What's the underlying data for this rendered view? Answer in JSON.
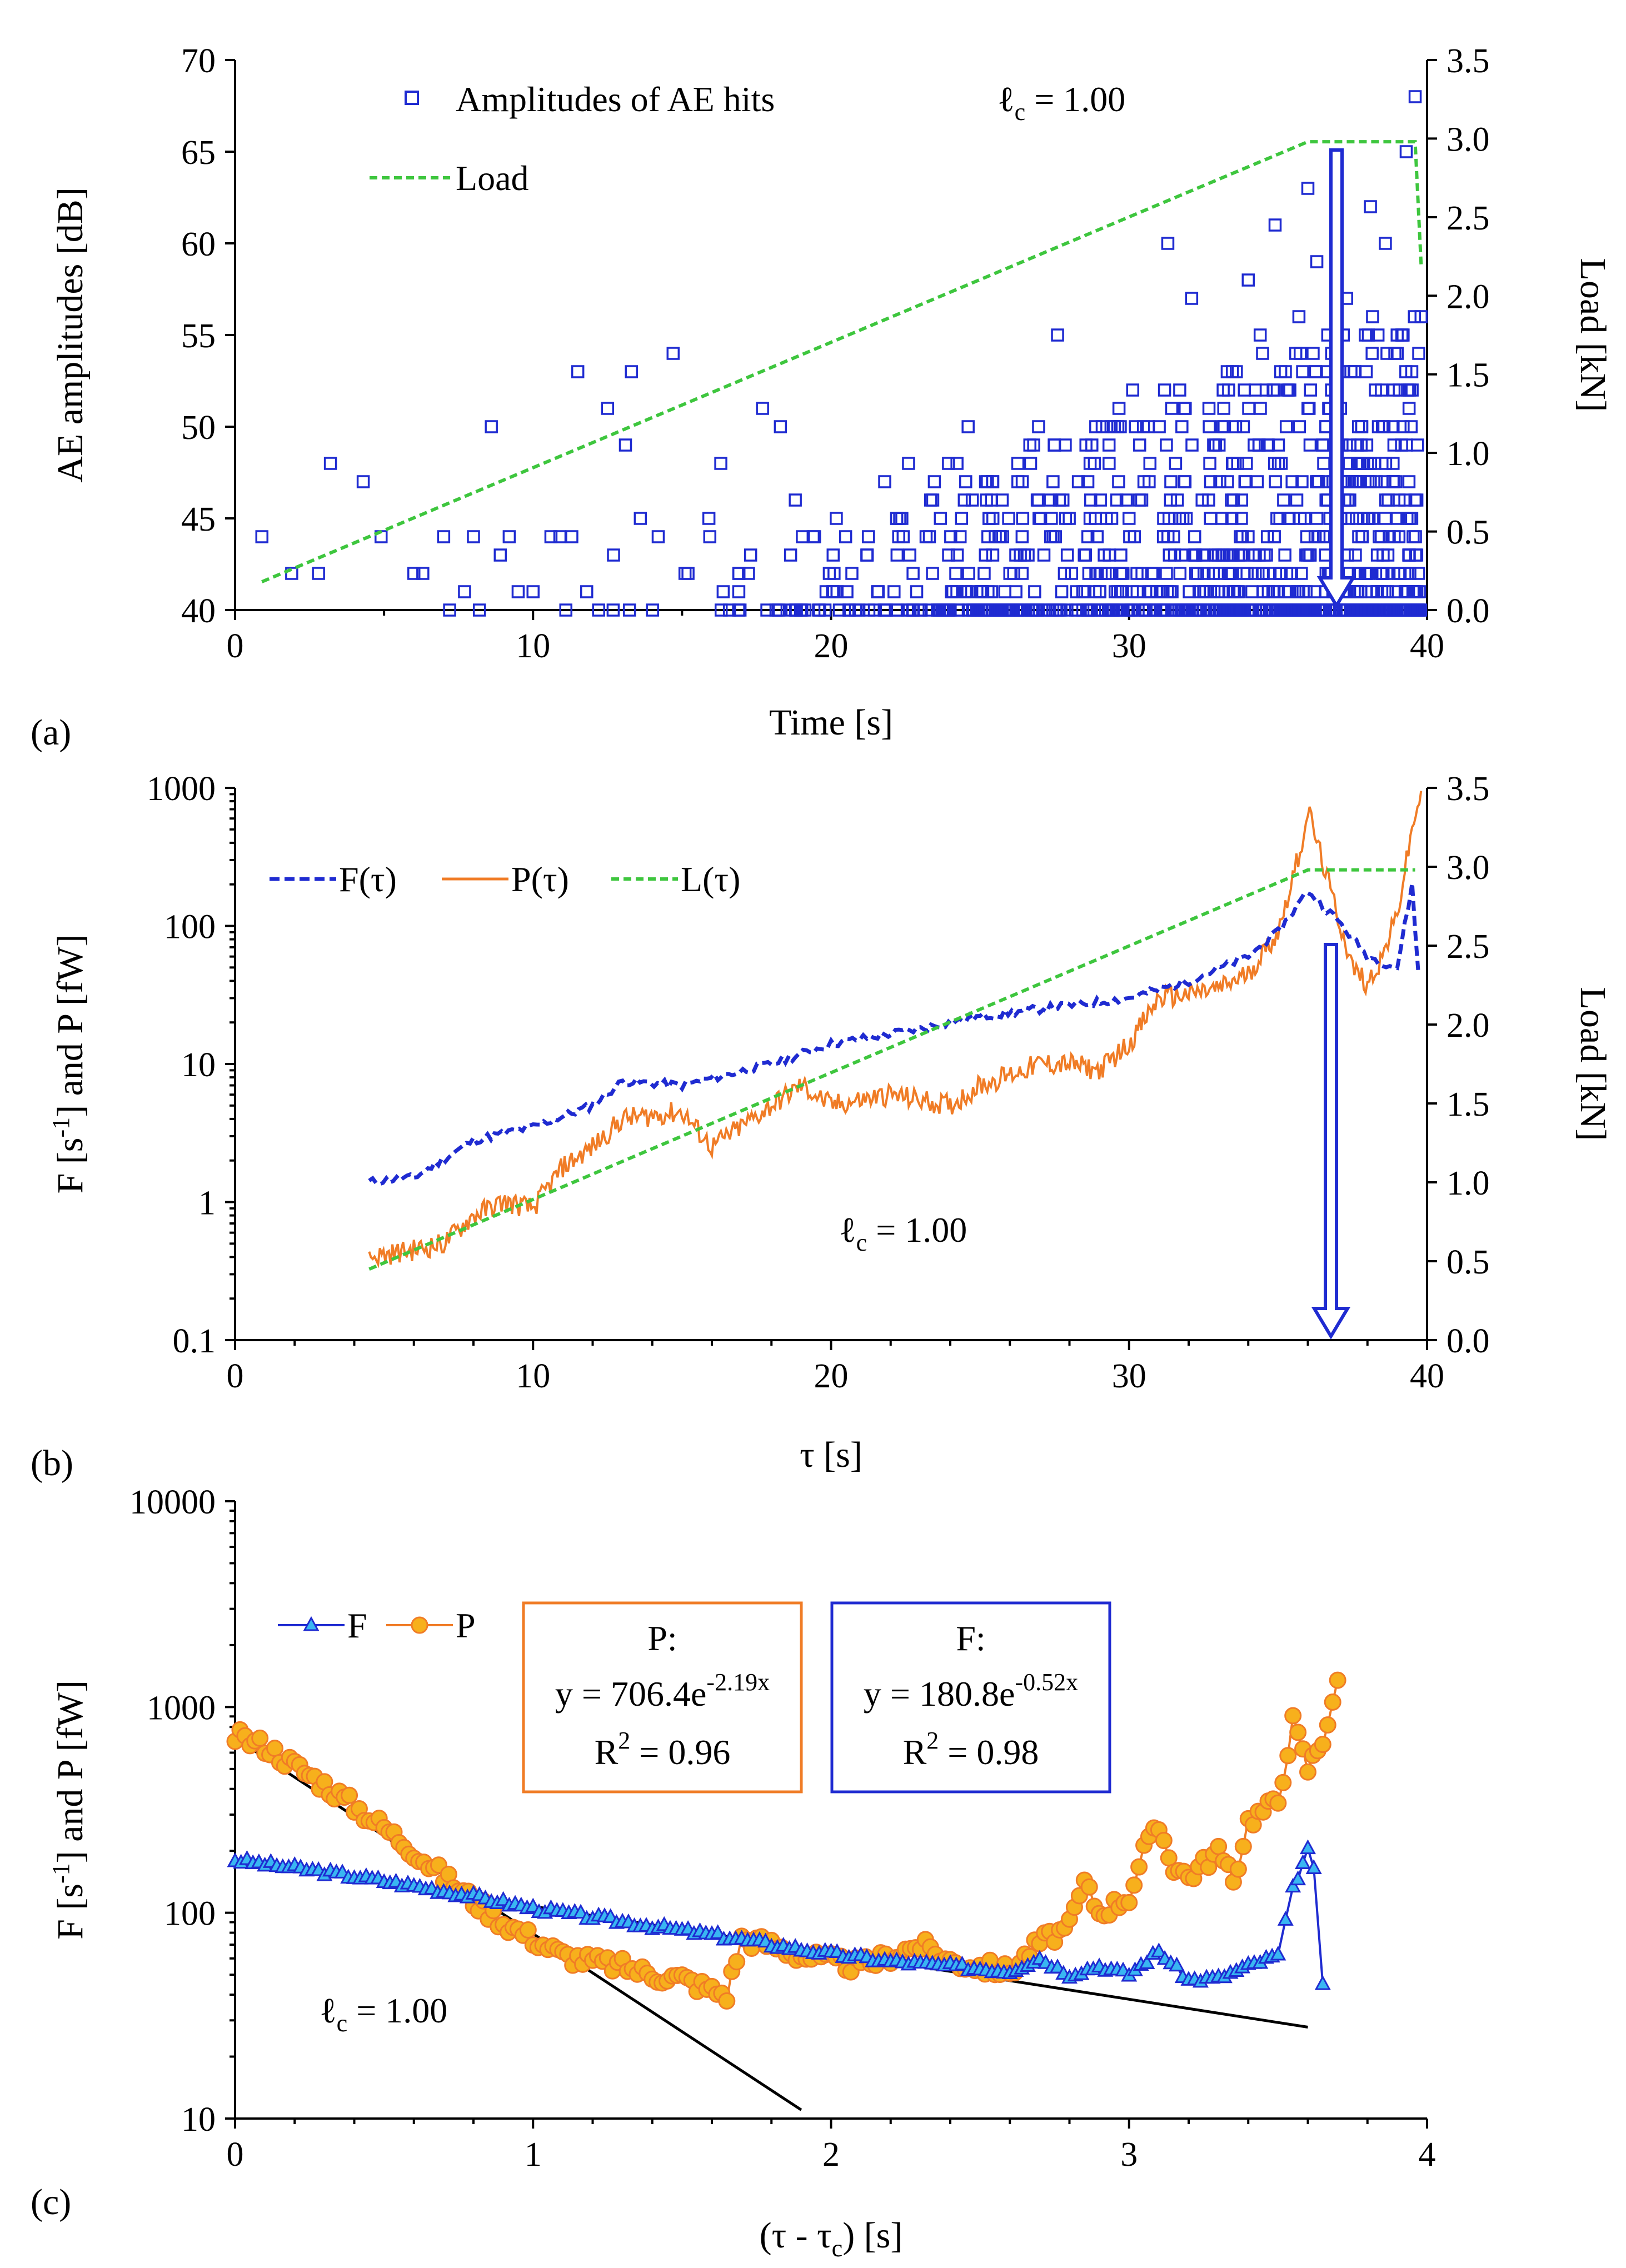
{
  "colors": {
    "blue": "#1f2bd1",
    "orange": "#f07c26",
    "green": "#3ec63e",
    "light_blue": "#39b6f2",
    "marker_orange": "#f7b01c",
    "black": "#000000"
  },
  "chart_data": [
    {
      "panel": "(a)",
      "type": "scatter",
      "xlabel": "Time [s]",
      "ylabel": "AE amplitudes [dB]",
      "y2label": "Load [kN]",
      "xlim": [
        0,
        40
      ],
      "ylim": [
        40,
        70
      ],
      "y2lim": [
        0,
        3.5
      ],
      "x_ticks": [
        "0",
        "10",
        "20",
        "30",
        "40"
      ],
      "y_ticks": [
        "40",
        "45",
        "50",
        "55",
        "60",
        "65",
        "70"
      ],
      "y2_ticks": [
        "0.0",
        "0.5",
        "1.0",
        "1.5",
        "2.0",
        "2.5",
        "3.0",
        "3.5"
      ],
      "legend": [
        "Amplitudes of AE hits",
        "Load"
      ],
      "annotation": "ℓ",
      "annotation_sub": "c",
      "annotation_val": " = 1.00",
      "series": [
        {
          "name": "Amplitudes of AE hits",
          "points": [
            [
              0.9,
              44
            ],
            [
              1.9,
              42
            ],
            [
              2.8,
              42
            ],
            [
              3.2,
              48
            ],
            [
              4.3,
              47
            ],
            [
              4.9,
              44
            ],
            [
              6.0,
              42
            ],
            [
              6.3,
              42
            ],
            [
              7.0,
              44
            ],
            [
              7.2,
              40
            ],
            [
              7.7,
              41
            ],
            [
              8.0,
              44
            ],
            [
              8.2,
              40
            ],
            [
              8.6,
              50
            ],
            [
              8.9,
              43
            ],
            [
              9.2,
              44
            ],
            [
              9.5,
              41
            ],
            [
              10.0,
              41
            ],
            [
              10.6,
              44
            ],
            [
              10.9,
              44
            ],
            [
              11.1,
              40
            ],
            [
              11.3,
              44
            ],
            [
              11.5,
              53
            ],
            [
              11.8,
              41
            ],
            [
              12.2,
              40
            ],
            [
              12.5,
              51
            ],
            [
              12.7,
              43
            ],
            [
              13.1,
              49
            ],
            [
              13.3,
              53
            ],
            [
              13.6,
              45
            ],
            [
              14.2,
              44
            ],
            [
              14.7,
              54
            ],
            [
              15.2,
              42
            ],
            [
              15.9,
              45
            ],
            [
              16.3,
              48
            ],
            [
              17.3,
              43
            ],
            [
              17.7,
              51
            ],
            [
              18.3,
              50
            ],
            [
              18.8,
              46
            ],
            [
              19.4,
              44
            ],
            [
              20.2,
              41
            ],
            [
              20.6,
              40
            ],
            [
              21.2,
              43
            ],
            [
              21.8,
              47
            ],
            [
              22.2,
              45
            ],
            [
              22.6,
              48
            ],
            [
              23.3,
              44
            ],
            [
              24.6,
              50
            ],
            [
              25.3,
              45
            ],
            [
              26.0,
              42
            ],
            [
              26.8,
              49
            ],
            [
              27.6,
              55
            ],
            [
              28.3,
              47
            ],
            [
              29.1,
              50
            ],
            [
              30.0,
              45
            ],
            [
              30.7,
              48
            ],
            [
              31.3,
              60
            ],
            [
              31.7,
              52
            ],
            [
              32.1,
              57
            ],
            [
              32.9,
              49
            ],
            [
              33.6,
              53
            ],
            [
              34.0,
              58
            ],
            [
              34.4,
              55
            ],
            [
              34.9,
              61
            ],
            [
              35.3,
              52
            ],
            [
              35.7,
              56
            ],
            [
              36.0,
              63
            ],
            [
              36.3,
              59
            ],
            [
              36.8,
              54
            ],
            [
              37.3,
              57
            ],
            [
              37.7,
              50
            ],
            [
              38.1,
              62
            ],
            [
              38.6,
              60
            ],
            [
              39.0,
              54
            ],
            [
              39.3,
              65
            ],
            [
              39.6,
              68
            ],
            [
              39.8,
              56
            ]
          ]
        },
        {
          "name": "Load",
          "points": [
            [
              0.9,
              0.18
            ],
            [
              36.0,
              2.98
            ],
            [
              39.6,
              2.98
            ],
            [
              39.8,
              2.2
            ]
          ]
        }
      ]
    },
    {
      "panel": "(b)",
      "type": "line",
      "xlabel": "τ [s]",
      "ylabel": "F [s-1] and P [fW]",
      "y2label": "Load [kN]",
      "xlim": [
        0,
        40
      ],
      "ylim": [
        0.1,
        1000
      ],
      "yscale": "log",
      "y2lim": [
        0,
        3.5
      ],
      "x_ticks": [
        "0",
        "10",
        "20",
        "30",
        "40"
      ],
      "y_ticks": [
        "0.1",
        "1",
        "10",
        "100",
        "1000"
      ],
      "y2_ticks": [
        "0.0",
        "0.5",
        "1.0",
        "1.5",
        "2.0",
        "2.5",
        "3.0",
        "3.5"
      ],
      "legend": [
        "F(τ)",
        "P(τ)",
        "L(τ)"
      ],
      "annotation": "ℓ",
      "annotation_sub": "c",
      "annotation_val": " = 1.00",
      "series": [
        {
          "name": "F(τ)",
          "points": [
            [
              4.5,
              1.4
            ],
            [
              6,
              1.5
            ],
            [
              8,
              2.8
            ],
            [
              10,
              3.5
            ],
            [
              12,
              5
            ],
            [
              13,
              7.5
            ],
            [
              15,
              7
            ],
            [
              18,
              10
            ],
            [
              20,
              14
            ],
            [
              23,
              18
            ],
            [
              25,
              22
            ],
            [
              27,
              25
            ],
            [
              30,
              30
            ],
            [
              32,
              40
            ],
            [
              34,
              60
            ],
            [
              35,
              90
            ],
            [
              36,
              180
            ],
            [
              37,
              110
            ],
            [
              38,
              60
            ],
            [
              39,
              50
            ],
            [
              39.5,
              200
            ],
            [
              39.7,
              48
            ]
          ]
        },
        {
          "name": "P(τ)",
          "points": [
            [
              4.5,
              0.4
            ],
            [
              6,
              0.45
            ],
            [
              7,
              0.5
            ],
            [
              8,
              0.8
            ],
            [
              9,
              1.0
            ],
            [
              10,
              0.9
            ],
            [
              11,
              1.8
            ],
            [
              12,
              2.5
            ],
            [
              13,
              4
            ],
            [
              15,
              4.5
            ],
            [
              16,
              2.5
            ],
            [
              18,
              5
            ],
            [
              19,
              7
            ],
            [
              20,
              5
            ],
            [
              22,
              6
            ],
            [
              24,
              5
            ],
            [
              25,
              7
            ],
            [
              27,
              10
            ],
            [
              28,
              10
            ],
            [
              29,
              9
            ],
            [
              30,
              14
            ],
            [
              31,
              30
            ],
            [
              32,
              32
            ],
            [
              33,
              35
            ],
            [
              34,
              45
            ],
            [
              35,
              90
            ],
            [
              35.8,
              400
            ],
            [
              36,
              700
            ],
            [
              36.7,
              200
            ],
            [
              37.5,
              50
            ],
            [
              38,
              38
            ],
            [
              38.5,
              60
            ],
            [
              39,
              120
            ],
            [
              39.5,
              500
            ],
            [
              39.8,
              950
            ]
          ]
        },
        {
          "name": "L(τ)",
          "points": [
            [
              4.5,
              0.45
            ],
            [
              36.0,
              2.98
            ],
            [
              39.6,
              2.98
            ]
          ]
        }
      ]
    },
    {
      "panel": "(c)",
      "type": "scatter",
      "xlabel": "(τ - τc) [s]",
      "ylabel": "F [s-1] and P [fW]",
      "xlim": [
        0,
        4
      ],
      "ylim": [
        10,
        10000
      ],
      "yscale": "log",
      "x_ticks": [
        "0",
        "1",
        "2",
        "3",
        "4"
      ],
      "y_ticks": [
        "10",
        "100",
        "1000",
        "10000"
      ],
      "legend": [
        "F",
        "P"
      ],
      "annotation": "ℓ",
      "annotation_sub": "c",
      "annotation_val": " = 1.00",
      "fits": [
        {
          "series": "P",
          "label": "P:",
          "eq_prefix": "y = 706.4e",
          "eq_exp": "-2.19x",
          "r2_prefix": "R",
          "r2_sup": "2",
          "r2_value": " = 0.96",
          "a": 706.4,
          "b": -2.19
        },
        {
          "series": "F",
          "label": "F:",
          "eq_prefix": "y = 180.8e",
          "eq_exp": "-0.52x",
          "r2_prefix": "R",
          "r2_sup": "2",
          "r2_value": " = 0.98",
          "a": 180.8,
          "b": -0.52
        }
      ],
      "series": [
        {
          "name": "F",
          "points": [
            [
              0,
              180
            ],
            [
              0.2,
              165
            ],
            [
              0.4,
              150
            ],
            [
              0.6,
              135
            ],
            [
              0.8,
              120
            ],
            [
              1.0,
              105
            ],
            [
              1.2,
              95
            ],
            [
              1.4,
              86
            ],
            [
              1.6,
              78
            ],
            [
              1.8,
              70
            ],
            [
              2.0,
              63
            ],
            [
              2.2,
              58
            ],
            [
              2.4,
              55
            ],
            [
              2.6,
              52
            ],
            [
              2.7,
              60
            ],
            [
              2.8,
              50
            ],
            [
              2.9,
              55
            ],
            [
              3.0,
              50
            ],
            [
              3.1,
              65
            ],
            [
              3.2,
              47
            ],
            [
              3.3,
              48
            ],
            [
              3.4,
              55
            ],
            [
              3.5,
              62
            ],
            [
              3.55,
              130
            ],
            [
              3.6,
              200
            ],
            [
              3.62,
              160
            ],
            [
              3.65,
              45
            ]
          ]
        },
        {
          "name": "P",
          "points": [
            [
              0,
              720
            ],
            [
              0.1,
              650
            ],
            [
              0.2,
              520
            ],
            [
              0.3,
              420
            ],
            [
              0.4,
              330
            ],
            [
              0.5,
              260
            ],
            [
              0.6,
              200
            ],
            [
              0.7,
              150
            ],
            [
              0.8,
              115
            ],
            [
              0.9,
              90
            ],
            [
              1.0,
              75
            ],
            [
              1.1,
              62
            ],
            [
              1.2,
              58
            ],
            [
              1.3,
              55
            ],
            [
              1.4,
              50
            ],
            [
              1.5,
              48
            ],
            [
              1.6,
              42
            ],
            [
              1.65,
              40
            ],
            [
              1.7,
              75
            ],
            [
              1.8,
              70
            ],
            [
              1.9,
              62
            ],
            [
              2.0,
              58
            ],
            [
              2.1,
              55
            ],
            [
              2.2,
              62
            ],
            [
              2.3,
              70
            ],
            [
              2.4,
              58
            ],
            [
              2.5,
              55
            ],
            [
              2.6,
              52
            ],
            [
              2.7,
              72
            ],
            [
              2.8,
              85
            ],
            [
              2.85,
              140
            ],
            [
              2.9,
              100
            ],
            [
              3.0,
              120
            ],
            [
              3.05,
              200
            ],
            [
              3.1,
              260
            ],
            [
              3.15,
              170
            ],
            [
              3.2,
              150
            ],
            [
              3.3,
              200
            ],
            [
              3.35,
              140
            ],
            [
              3.4,
              280
            ],
            [
              3.5,
              350
            ],
            [
              3.55,
              850
            ],
            [
              3.6,
              500
            ],
            [
              3.65,
              700
            ],
            [
              3.7,
              1350
            ]
          ]
        }
      ]
    }
  ]
}
